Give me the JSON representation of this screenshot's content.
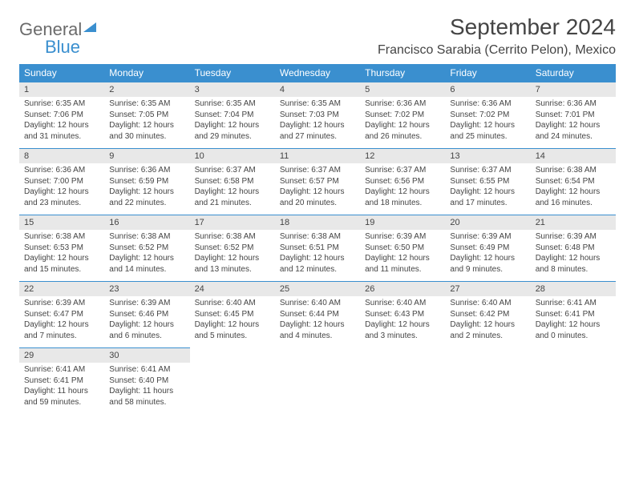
{
  "logo": {
    "word1": "General",
    "word2": "Blue"
  },
  "title": "September 2024",
  "location": "Francisco Sarabia (Cerrito Pelon), Mexico",
  "colors": {
    "accent": "#3a8fcf",
    "dayband": "#e8e8e8",
    "text": "#444444",
    "bg": "#ffffff"
  },
  "days_of_week": [
    "Sunday",
    "Monday",
    "Tuesday",
    "Wednesday",
    "Thursday",
    "Friday",
    "Saturday"
  ],
  "weeks": [
    {
      "nums": [
        "1",
        "2",
        "3",
        "4",
        "5",
        "6",
        "7"
      ],
      "cells": [
        {
          "sunrise": "Sunrise: 6:35 AM",
          "sunset": "Sunset: 7:06 PM",
          "day1": "Daylight: 12 hours",
          "day2": "and 31 minutes."
        },
        {
          "sunrise": "Sunrise: 6:35 AM",
          "sunset": "Sunset: 7:05 PM",
          "day1": "Daylight: 12 hours",
          "day2": "and 30 minutes."
        },
        {
          "sunrise": "Sunrise: 6:35 AM",
          "sunset": "Sunset: 7:04 PM",
          "day1": "Daylight: 12 hours",
          "day2": "and 29 minutes."
        },
        {
          "sunrise": "Sunrise: 6:35 AM",
          "sunset": "Sunset: 7:03 PM",
          "day1": "Daylight: 12 hours",
          "day2": "and 27 minutes."
        },
        {
          "sunrise": "Sunrise: 6:36 AM",
          "sunset": "Sunset: 7:02 PM",
          "day1": "Daylight: 12 hours",
          "day2": "and 26 minutes."
        },
        {
          "sunrise": "Sunrise: 6:36 AM",
          "sunset": "Sunset: 7:02 PM",
          "day1": "Daylight: 12 hours",
          "day2": "and 25 minutes."
        },
        {
          "sunrise": "Sunrise: 6:36 AM",
          "sunset": "Sunset: 7:01 PM",
          "day1": "Daylight: 12 hours",
          "day2": "and 24 minutes."
        }
      ]
    },
    {
      "nums": [
        "8",
        "9",
        "10",
        "11",
        "12",
        "13",
        "14"
      ],
      "cells": [
        {
          "sunrise": "Sunrise: 6:36 AM",
          "sunset": "Sunset: 7:00 PM",
          "day1": "Daylight: 12 hours",
          "day2": "and 23 minutes."
        },
        {
          "sunrise": "Sunrise: 6:36 AM",
          "sunset": "Sunset: 6:59 PM",
          "day1": "Daylight: 12 hours",
          "day2": "and 22 minutes."
        },
        {
          "sunrise": "Sunrise: 6:37 AM",
          "sunset": "Sunset: 6:58 PM",
          "day1": "Daylight: 12 hours",
          "day2": "and 21 minutes."
        },
        {
          "sunrise": "Sunrise: 6:37 AM",
          "sunset": "Sunset: 6:57 PM",
          "day1": "Daylight: 12 hours",
          "day2": "and 20 minutes."
        },
        {
          "sunrise": "Sunrise: 6:37 AM",
          "sunset": "Sunset: 6:56 PM",
          "day1": "Daylight: 12 hours",
          "day2": "and 18 minutes."
        },
        {
          "sunrise": "Sunrise: 6:37 AM",
          "sunset": "Sunset: 6:55 PM",
          "day1": "Daylight: 12 hours",
          "day2": "and 17 minutes."
        },
        {
          "sunrise": "Sunrise: 6:38 AM",
          "sunset": "Sunset: 6:54 PM",
          "day1": "Daylight: 12 hours",
          "day2": "and 16 minutes."
        }
      ]
    },
    {
      "nums": [
        "15",
        "16",
        "17",
        "18",
        "19",
        "20",
        "21"
      ],
      "cells": [
        {
          "sunrise": "Sunrise: 6:38 AM",
          "sunset": "Sunset: 6:53 PM",
          "day1": "Daylight: 12 hours",
          "day2": "and 15 minutes."
        },
        {
          "sunrise": "Sunrise: 6:38 AM",
          "sunset": "Sunset: 6:52 PM",
          "day1": "Daylight: 12 hours",
          "day2": "and 14 minutes."
        },
        {
          "sunrise": "Sunrise: 6:38 AM",
          "sunset": "Sunset: 6:52 PM",
          "day1": "Daylight: 12 hours",
          "day2": "and 13 minutes."
        },
        {
          "sunrise": "Sunrise: 6:38 AM",
          "sunset": "Sunset: 6:51 PM",
          "day1": "Daylight: 12 hours",
          "day2": "and 12 minutes."
        },
        {
          "sunrise": "Sunrise: 6:39 AM",
          "sunset": "Sunset: 6:50 PM",
          "day1": "Daylight: 12 hours",
          "day2": "and 11 minutes."
        },
        {
          "sunrise": "Sunrise: 6:39 AM",
          "sunset": "Sunset: 6:49 PM",
          "day1": "Daylight: 12 hours",
          "day2": "and 9 minutes."
        },
        {
          "sunrise": "Sunrise: 6:39 AM",
          "sunset": "Sunset: 6:48 PM",
          "day1": "Daylight: 12 hours",
          "day2": "and 8 minutes."
        }
      ]
    },
    {
      "nums": [
        "22",
        "23",
        "24",
        "25",
        "26",
        "27",
        "28"
      ],
      "cells": [
        {
          "sunrise": "Sunrise: 6:39 AM",
          "sunset": "Sunset: 6:47 PM",
          "day1": "Daylight: 12 hours",
          "day2": "and 7 minutes."
        },
        {
          "sunrise": "Sunrise: 6:39 AM",
          "sunset": "Sunset: 6:46 PM",
          "day1": "Daylight: 12 hours",
          "day2": "and 6 minutes."
        },
        {
          "sunrise": "Sunrise: 6:40 AM",
          "sunset": "Sunset: 6:45 PM",
          "day1": "Daylight: 12 hours",
          "day2": "and 5 minutes."
        },
        {
          "sunrise": "Sunrise: 6:40 AM",
          "sunset": "Sunset: 6:44 PM",
          "day1": "Daylight: 12 hours",
          "day2": "and 4 minutes."
        },
        {
          "sunrise": "Sunrise: 6:40 AM",
          "sunset": "Sunset: 6:43 PM",
          "day1": "Daylight: 12 hours",
          "day2": "and 3 minutes."
        },
        {
          "sunrise": "Sunrise: 6:40 AM",
          "sunset": "Sunset: 6:42 PM",
          "day1": "Daylight: 12 hours",
          "day2": "and 2 minutes."
        },
        {
          "sunrise": "Sunrise: 6:41 AM",
          "sunset": "Sunset: 6:41 PM",
          "day1": "Daylight: 12 hours",
          "day2": "and 0 minutes."
        }
      ]
    },
    {
      "nums": [
        "29",
        "30",
        "",
        "",
        "",
        "",
        ""
      ],
      "cells": [
        {
          "sunrise": "Sunrise: 6:41 AM",
          "sunset": "Sunset: 6:41 PM",
          "day1": "Daylight: 11 hours",
          "day2": "and 59 minutes."
        },
        {
          "sunrise": "Sunrise: 6:41 AM",
          "sunset": "Sunset: 6:40 PM",
          "day1": "Daylight: 11 hours",
          "day2": "and 58 minutes."
        },
        {
          "sunrise": "",
          "sunset": "",
          "day1": "",
          "day2": ""
        },
        {
          "sunrise": "",
          "sunset": "",
          "day1": "",
          "day2": ""
        },
        {
          "sunrise": "",
          "sunset": "",
          "day1": "",
          "day2": ""
        },
        {
          "sunrise": "",
          "sunset": "",
          "day1": "",
          "day2": ""
        },
        {
          "sunrise": "",
          "sunset": "",
          "day1": "",
          "day2": ""
        }
      ]
    }
  ]
}
